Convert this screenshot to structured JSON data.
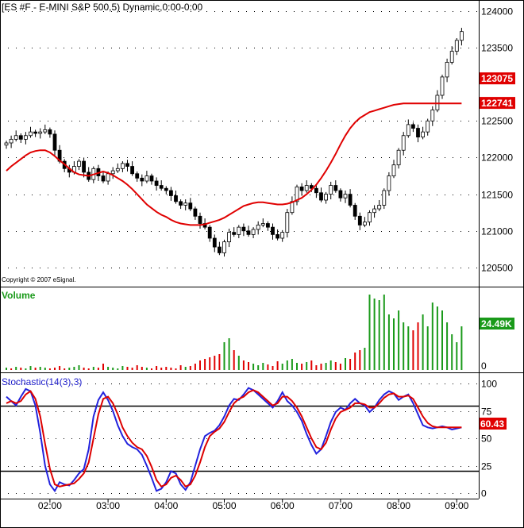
{
  "chart_data": [
    {
      "type": "candlestick",
      "title": "[ES #F - E-MINI S&P 500,5) Dynamic,0:00-0:00",
      "copyright": "Copyright © 2007 eSignal.",
      "ylim": [
        12025,
        12415
      ],
      "y_ticks": [
        12050,
        12100,
        12150,
        12200,
        12250,
        12350,
        12400
      ],
      "y_tick_labels": [
        "120500",
        "121000",
        "121500",
        "122000",
        "122500",
        "123500",
        "124000"
      ],
      "price_labels": [
        {
          "value": 12307.5,
          "label": "123075",
          "color": "#e00000"
        },
        {
          "value": 12274.1,
          "label": "122741",
          "color": "#e00000"
        }
      ],
      "x_times": [
        "01:15",
        "01:20",
        "01:25",
        "01:30",
        "01:35",
        "01:40",
        "01:45",
        "01:50",
        "01:55",
        "02:00",
        "02:05",
        "02:10",
        "02:15",
        "02:20",
        "02:25",
        "02:30",
        "02:35",
        "02:40",
        "02:45",
        "02:50",
        "02:55",
        "03:00",
        "03:05",
        "03:10",
        "03:15",
        "03:20",
        "03:25",
        "03:30",
        "03:35",
        "03:40",
        "03:45",
        "03:50",
        "03:55",
        "04:00",
        "04:05",
        "04:10",
        "04:15",
        "04:20",
        "04:25",
        "04:30",
        "04:35",
        "04:40",
        "04:45",
        "04:50",
        "04:55",
        "05:00",
        "05:05",
        "05:10",
        "05:15",
        "05:20",
        "05:25",
        "05:30",
        "05:35",
        "05:40",
        "05:45",
        "05:50",
        "05:55",
        "06:00",
        "06:05",
        "06:10",
        "06:15",
        "06:20",
        "06:25",
        "06:30",
        "06:35",
        "06:40",
        "06:45",
        "06:50",
        "06:55",
        "07:00",
        "07:05",
        "07:10",
        "07:15",
        "07:20",
        "07:25",
        "07:30",
        "07:35",
        "07:40",
        "07:45",
        "07:50",
        "07:55",
        "08:00",
        "08:05",
        "08:10",
        "08:15",
        "08:20",
        "08:25",
        "08:30",
        "08:35",
        "08:40",
        "08:45",
        "08:50",
        "08:55",
        "09:00",
        "09:05"
      ],
      "x_tick_labels": [
        "02:00",
        "03:00",
        "04:00",
        "05:00",
        "06:00",
        "07:00",
        "08:00",
        "09:00"
      ],
      "close": [
        12220,
        12225,
        12230,
        12225,
        12230,
        12235,
        12233,
        12235,
        12238,
        12232,
        12210,
        12195,
        12185,
        12180,
        12188,
        12195,
        12180,
        12170,
        12185,
        12175,
        12168,
        12178,
        12182,
        12185,
        12192,
        12188,
        12178,
        12172,
        12168,
        12175,
        12168,
        12162,
        12158,
        12155,
        12148,
        12140,
        12135,
        12138,
        12130,
        12120,
        12110,
        12105,
        12090,
        12078,
        12070,
        12085,
        12098,
        12095,
        12105,
        12100,
        12095,
        12102,
        12108,
        12110,
        12105,
        12095,
        12090,
        12098,
        12125,
        12140,
        12160,
        12155,
        12162,
        12158,
        12152,
        12142,
        12150,
        12162,
        12155,
        12145,
        12150,
        12135,
        12120,
        12108,
        12112,
        12125,
        12130,
        12135,
        12155,
        12175,
        12190,
        12210,
        12230,
        12245,
        12240,
        12228,
        12235,
        12250,
        12265,
        12285,
        12310,
        12330,
        12345,
        12360,
        12372
      ],
      "ma_label": "",
      "ma": [
        12182,
        12188,
        12193,
        12198,
        12203,
        12207,
        12209,
        12210,
        12210,
        12207,
        12202,
        12196,
        12191,
        12185,
        12180,
        12177,
        12176,
        12175,
        12177,
        12179,
        12181,
        12179,
        12176,
        12172,
        12168,
        12163,
        12157,
        12150,
        12143,
        12136,
        12131,
        12126,
        12122,
        12119,
        12115,
        12112,
        12110,
        12109,
        12108,
        12108,
        12108,
        12109,
        12111,
        12113,
        12115,
        12118,
        12122,
        12126,
        12130,
        12134,
        12136,
        12138,
        12139,
        12139,
        12138,
        12137,
        12136,
        12136,
        12137,
        12139,
        12142,
        12145,
        12150,
        12156,
        12163,
        12172,
        12182,
        12193,
        12205,
        12218,
        12230,
        12240,
        12248,
        12254,
        12258,
        12262,
        12264,
        12266,
        12268,
        12270,
        12272,
        12273,
        12274,
        12274,
        12274,
        12274,
        12274,
        12274,
        12274,
        12274,
        12274,
        12274,
        12274,
        12274,
        12274
      ]
    },
    {
      "type": "bar",
      "title": "Volume",
      "ylim": [
        0,
        100
      ],
      "y_tick_labels": [
        "0"
      ],
      "last_value_label": "24.49K",
      "values": [
        3,
        2,
        4,
        3,
        2,
        5,
        3,
        4,
        3,
        2,
        3,
        5,
        2,
        3,
        4,
        6,
        3,
        2,
        4,
        3,
        8,
        4,
        3,
        2,
        5,
        4,
        3,
        6,
        4,
        3,
        2,
        5,
        3,
        4,
        3,
        2,
        6,
        4,
        5,
        8,
        12,
        14,
        16,
        18,
        20,
        35,
        40,
        25,
        18,
        12,
        10,
        8,
        6,
        9,
        7,
        5,
        11,
        8,
        12,
        14,
        9,
        8,
        10,
        12,
        6,
        8,
        9,
        12,
        10,
        8,
        15,
        14,
        22,
        25,
        28,
        95,
        90,
        88,
        95,
        70,
        65,
        75,
        60,
        55,
        50,
        60,
        70,
        55,
        85,
        80,
        75,
        60,
        45,
        35,
        55
      ],
      "up": [
        true,
        false,
        true,
        false,
        true,
        true,
        false,
        true,
        true,
        false,
        false,
        false,
        false,
        true,
        true,
        true,
        false,
        false,
        true,
        false,
        false,
        true,
        true,
        true,
        true,
        false,
        false,
        false,
        false,
        true,
        false,
        false,
        false,
        false,
        false,
        false,
        false,
        true,
        false,
        false,
        false,
        false,
        false,
        false,
        false,
        true,
        true,
        false,
        true,
        false,
        false,
        true,
        true,
        true,
        false,
        false,
        false,
        true,
        true,
        true,
        true,
        false,
        true,
        false,
        false,
        false,
        true,
        true,
        false,
        false,
        true,
        false,
        false,
        false,
        true,
        true,
        true,
        true,
        true,
        true,
        true,
        true,
        true,
        true,
        false,
        false,
        true,
        true,
        true,
        true,
        true,
        true,
        true,
        true,
        true
      ]
    },
    {
      "type": "line",
      "title": "Stochastic(14(3),3)",
      "ylim": [
        -5,
        108
      ],
      "y_ticks": [
        0,
        25,
        50,
        75,
        100
      ],
      "y_tick_labels": [
        "0",
        "25",
        "50",
        "75",
        "100"
      ],
      "reference_lines": [
        20,
        80
      ],
      "last_value_label": "60.43",
      "series": [
        {
          "name": "",
          "color": "#2222dd",
          "values": [
            88,
            84,
            80,
            88,
            95,
            93,
            80,
            55,
            25,
            8,
            2,
            10,
            8,
            7,
            12,
            18,
            22,
            40,
            70,
            85,
            92,
            85,
            75,
            62,
            52,
            45,
            42,
            40,
            35,
            25,
            14,
            2,
            4,
            10,
            20,
            18,
            8,
            3,
            10,
            25,
            40,
            52,
            55,
            57,
            62,
            70,
            80,
            86,
            85,
            90,
            96,
            94,
            90,
            86,
            82,
            78,
            84,
            92,
            84,
            80,
            74,
            66,
            54,
            44,
            36,
            40,
            52,
            65,
            74,
            78,
            76,
            82,
            86,
            82,
            80,
            74,
            78,
            85,
            90,
            93,
            91,
            85,
            88,
            90,
            82,
            72,
            62,
            60,
            59,
            60,
            61,
            60,
            58,
            59,
            60
          ]
        },
        {
          "name": "",
          "color": "#dd0000",
          "values": [
            82,
            84,
            82,
            84,
            90,
            93,
            86,
            70,
            45,
            22,
            8,
            6,
            7,
            8,
            9,
            13,
            18,
            28,
            50,
            72,
            86,
            88,
            82,
            72,
            60,
            52,
            46,
            42,
            40,
            34,
            24,
            12,
            6,
            8,
            14,
            16,
            12,
            6,
            8,
            16,
            28,
            42,
            52,
            56,
            59,
            65,
            74,
            82,
            86,
            88,
            92,
            94,
            92,
            88,
            84,
            80,
            82,
            88,
            88,
            84,
            78,
            70,
            60,
            50,
            42,
            40,
            46,
            58,
            68,
            74,
            76,
            78,
            82,
            82,
            81,
            78,
            78,
            82,
            87,
            90,
            91,
            88,
            88,
            89,
            86,
            78,
            70,
            64,
            61,
            60,
            60,
            60,
            60,
            60,
            60
          ]
        }
      ]
    }
  ]
}
